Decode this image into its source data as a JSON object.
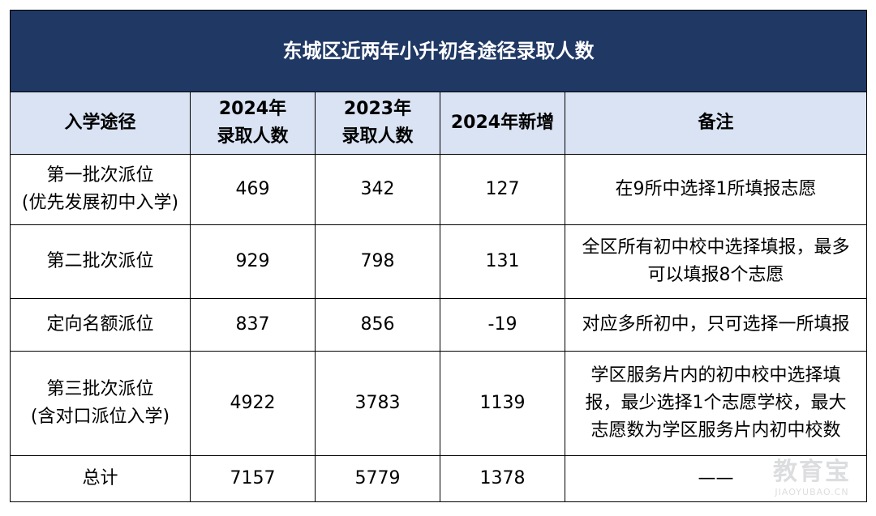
{
  "title": "东城区近两年小升初各途径录取人数",
  "headers": {
    "path": "入学途径",
    "y2024": [
      "2024年",
      "录取人数"
    ],
    "y2023": [
      "2023年",
      "录取人数"
    ],
    "increase": "2024年新增",
    "note": "备注"
  },
  "rows": [
    {
      "path": [
        "第一批次派位",
        "(优先发展初中入学)"
      ],
      "y2024": "469",
      "y2023": "342",
      "increase": "127",
      "note": [
        "在9所中选择1所填报志愿"
      ]
    },
    {
      "path": [
        "第二批次派位"
      ],
      "y2024": "929",
      "y2023": "798",
      "increase": "131",
      "note": [
        "全区所有初中校中选择填报，最多",
        "可以填报8个志愿"
      ]
    },
    {
      "path": [
        "定向名额派位"
      ],
      "y2024": "837",
      "y2023": "856",
      "increase": "-19",
      "note": [
        "对应多所初中，只可选择一所填报"
      ]
    },
    {
      "path": [
        "第三批次派位",
        "(含对口派位入学)"
      ],
      "y2024": "4922",
      "y2023": "3783",
      "increase": "1139",
      "note": [
        "学区服务片内的初中校中选择填",
        "报，最少选择1个志愿学校，最大",
        "志愿数为学区服务片内初中校数"
      ]
    },
    {
      "path": [
        "总计"
      ],
      "y2024": "7157",
      "y2023": "5779",
      "increase": "1378",
      "note": [
        "——"
      ]
    }
  ],
  "watermark": {
    "logo": "教育宝",
    "url": "JIAOYUBAO.CN"
  },
  "colors": {
    "title_bg": "#203864",
    "header_bg": "#dae3f3"
  }
}
